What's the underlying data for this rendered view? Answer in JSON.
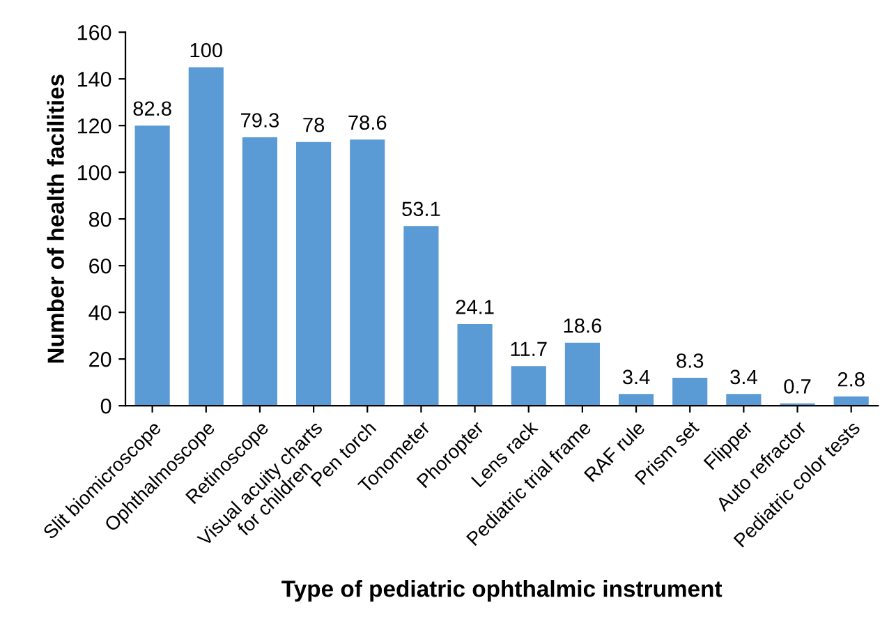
{
  "chart_data": {
    "type": "bar",
    "xlabel": "Type of pediatric ophthalmic instrument",
    "ylabel": "Number of health facilities",
    "categories": [
      "Slit biomicroscope",
      "Ophthalmoscope",
      "Retinoscope",
      "Visual acuity charts\nfor children",
      "Pen torch",
      "Tonometer",
      "Phoropter",
      "Lens rack",
      "Pediatric trial frame",
      "RAF rule",
      "Prism set",
      "Flipper",
      "Auto refractor",
      "Pediatric color tests"
    ],
    "values": [
      120,
      145,
      115,
      113,
      114,
      77,
      35,
      17,
      27,
      5,
      12,
      5,
      1,
      4
    ],
    "annotations": [
      {
        "text": "82.8",
        "x": "Slit biomicroscope",
        "y": 120
      },
      {
        "text": "100",
        "x": "Ophthalmoscope",
        "y": 145
      },
      {
        "text": "79.3",
        "x": "Retinoscope",
        "y": 115
      },
      {
        "text": "78",
        "x": "Visual acuity charts\nfor children",
        "y": 113
      },
      {
        "text": "78.6",
        "x": "Pen torch",
        "y": 114
      },
      {
        "text": "53.1",
        "x": "Tonometer",
        "y": 77
      },
      {
        "text": "24.1",
        "x": "Phoropter",
        "y": 35
      },
      {
        "text": "11.7",
        "x": "Lens rack",
        "y": 17
      },
      {
        "text": "18.6",
        "x": "Pediatric trial frame",
        "y": 27
      },
      {
        "text": "3.4",
        "x": "RAF rule",
        "y": 5
      },
      {
        "text": "8.3",
        "x": "Prism set",
        "y": 12
      },
      {
        "text": "3.4",
        "x": "Flipper",
        "y": 5
      },
      {
        "text": "0.7",
        "x": "Auto refractor",
        "y": 1
      },
      {
        "text": "2.8",
        "x": "Pediatric color tests",
        "y": 4
      }
    ],
    "color": "#5b9bd5",
    "ylim": [
      0,
      160
    ],
    "yticks": [
      0,
      20,
      40,
      60,
      80,
      100,
      120,
      140,
      160
    ],
    "grid": false
  }
}
